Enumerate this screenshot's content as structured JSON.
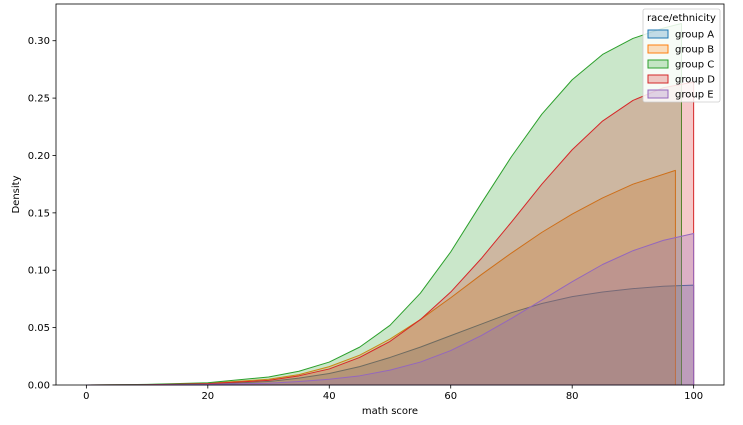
{
  "chart_data": {
    "type": "area",
    "xlabel": "math score",
    "ylabel": "Density",
    "xlim": [
      -5,
      105
    ],
    "ylim": [
      0,
      0.332
    ],
    "x_ticks": [
      0,
      20,
      40,
      60,
      80,
      100
    ],
    "y_ticks": [
      0.0,
      0.05,
      0.1,
      0.15,
      0.2,
      0.25,
      0.3
    ],
    "y_tick_labels": [
      "0.00",
      "0.05",
      "0.10",
      "0.15",
      "0.20",
      "0.25",
      "0.30"
    ],
    "grid": false,
    "legend": {
      "title": "race/ethnicity",
      "placement": "top-right"
    },
    "stacked": false,
    "series": [
      {
        "name": "group A",
        "color": "#1f77b4",
        "x": [
          0,
          10,
          20,
          30,
          35,
          40,
          45,
          50,
          55,
          60,
          65,
          70,
          75,
          80,
          85,
          90,
          95,
          100
        ],
        "y": [
          0.0,
          0.0002,
          0.0008,
          0.003,
          0.006,
          0.01,
          0.016,
          0.024,
          0.033,
          0.043,
          0.053,
          0.063,
          0.071,
          0.077,
          0.081,
          0.084,
          0.086,
          0.087
        ]
      },
      {
        "name": "group B",
        "color": "#ff7f0e",
        "x": [
          0,
          10,
          20,
          30,
          35,
          40,
          45,
          50,
          55,
          60,
          65,
          70,
          75,
          80,
          85,
          90,
          97
        ],
        "y": [
          0.0,
          0.0003,
          0.0015,
          0.005,
          0.009,
          0.016,
          0.026,
          0.04,
          0.057,
          0.076,
          0.096,
          0.115,
          0.133,
          0.149,
          0.163,
          0.175,
          0.187
        ]
      },
      {
        "name": "group C",
        "color": "#2ca02c",
        "x": [
          0,
          10,
          20,
          30,
          35,
          40,
          45,
          50,
          55,
          60,
          65,
          70,
          75,
          80,
          85,
          90,
          95,
          98
        ],
        "y": [
          0.0,
          0.0005,
          0.002,
          0.007,
          0.012,
          0.02,
          0.033,
          0.052,
          0.08,
          0.116,
          0.158,
          0.199,
          0.236,
          0.266,
          0.288,
          0.302,
          0.311,
          0.315
        ]
      },
      {
        "name": "group D",
        "color": "#d62728",
        "x": [
          0,
          10,
          20,
          30,
          35,
          40,
          45,
          50,
          55,
          60,
          65,
          70,
          75,
          80,
          85,
          90,
          95,
          100
        ],
        "y": [
          0.0,
          0.0002,
          0.0012,
          0.004,
          0.008,
          0.014,
          0.024,
          0.038,
          0.057,
          0.081,
          0.11,
          0.142,
          0.175,
          0.205,
          0.23,
          0.248,
          0.259,
          0.264
        ]
      },
      {
        "name": "group E",
        "color": "#9467bd",
        "x": [
          0,
          10,
          20,
          30,
          35,
          40,
          45,
          50,
          55,
          60,
          65,
          70,
          75,
          80,
          85,
          90,
          95,
          100
        ],
        "y": [
          0.0,
          0.0001,
          0.0005,
          0.0015,
          0.003,
          0.005,
          0.008,
          0.013,
          0.02,
          0.03,
          0.043,
          0.058,
          0.074,
          0.09,
          0.105,
          0.117,
          0.126,
          0.132
        ]
      }
    ]
  }
}
